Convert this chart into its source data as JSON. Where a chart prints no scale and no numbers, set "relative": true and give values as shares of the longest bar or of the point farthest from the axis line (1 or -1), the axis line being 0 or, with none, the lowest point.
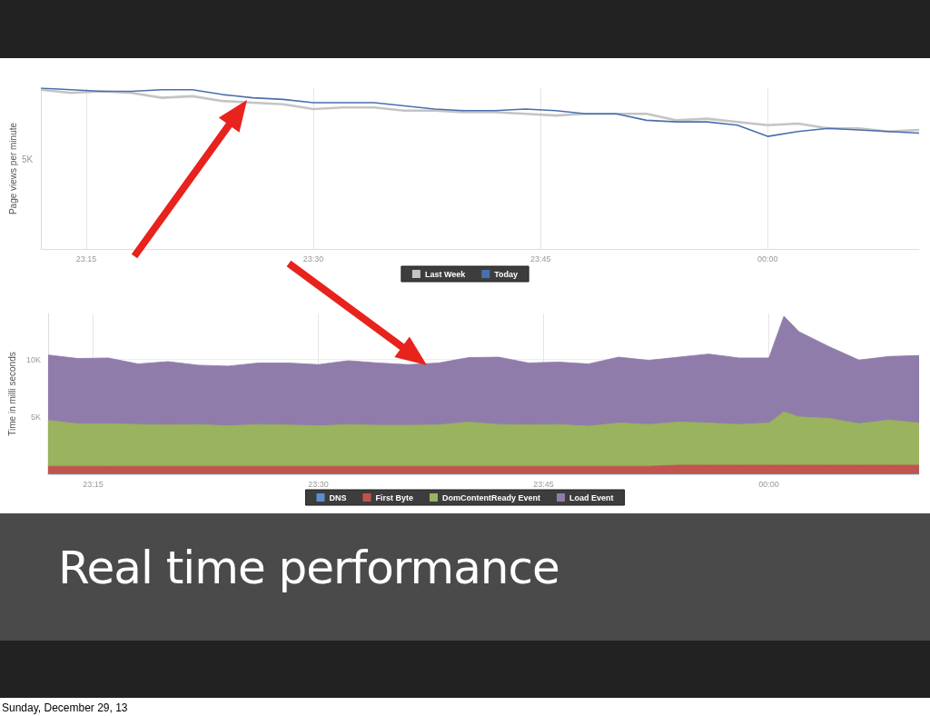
{
  "chart_data": [
    {
      "type": "line",
      "ylabel": "Page views per minute",
      "relative": true,
      "annotations": [
        "5K"
      ],
      "legend": "bottom",
      "grid": "x",
      "marker": "none",
      "xlim": [
        23.2,
        24.1667
      ],
      "xticks": [
        {
          "value": 23.25,
          "label": "23:15"
        },
        {
          "value": 23.5,
          "label": "23:30"
        },
        {
          "value": 23.75,
          "label": "23:45"
        },
        {
          "value": 24,
          "label": "00:00"
        }
      ],
      "x": [
        23.2,
        23.2333,
        23.2667,
        23.3,
        23.3333,
        23.3667,
        23.4,
        23.4333,
        23.4667,
        23.5,
        23.5333,
        23.5667,
        23.6,
        23.6333,
        23.6667,
        23.7,
        23.7333,
        23.7667,
        23.8,
        23.8333,
        23.8667,
        23.9,
        23.9333,
        23.9667,
        24.0,
        24.0333,
        24.0667,
        24.1,
        24.1333,
        24.1667
      ],
      "series": [
        {
          "name": "Last Week",
          "color": "#c4c4c4",
          "values": [
            0.99,
            0.97,
            0.98,
            0.97,
            0.94,
            0.95,
            0.92,
            0.91,
            0.9,
            0.87,
            0.88,
            0.88,
            0.86,
            0.86,
            0.85,
            0.85,
            0.84,
            0.83,
            0.84,
            0.84,
            0.84,
            0.8,
            0.81,
            0.79,
            0.77,
            0.78,
            0.75,
            0.75,
            0.73,
            0.74
          ]
        },
        {
          "name": "Today",
          "color": "#4a6fae",
          "values": [
            1.0,
            0.99,
            0.98,
            0.98,
            0.99,
            0.99,
            0.96,
            0.94,
            0.93,
            0.91,
            0.91,
            0.91,
            0.89,
            0.87,
            0.86,
            0.86,
            0.87,
            0.86,
            0.84,
            0.84,
            0.8,
            0.79,
            0.79,
            0.77,
            0.7,
            0.73,
            0.75,
            0.74,
            0.73,
            0.72
          ]
        }
      ]
    },
    {
      "type": "area",
      "stacked": true,
      "title": "Real time performance",
      "annotations": [
        "Sunday, December 29, 13"
      ],
      "ylabel": "Time in milli seconds",
      "legend": "bottom",
      "grid": true,
      "marker": "none",
      "xlim": [
        23.2,
        24.1667
      ],
      "xticks": [
        {
          "value": 23.25,
          "label": "23:15"
        },
        {
          "value": 23.5,
          "label": "23:30"
        },
        {
          "value": 23.75,
          "label": "23:45"
        },
        {
          "value": 24,
          "label": "00:00"
        }
      ],
      "ylim": [
        0,
        14000
      ],
      "yticks": [
        {
          "value": 5000,
          "label": "5K"
        },
        {
          "value": 10000,
          "label": "10K"
        }
      ],
      "x": [
        23.2,
        23.2333,
        23.2667,
        23.3,
        23.3333,
        23.3667,
        23.4,
        23.4333,
        23.4667,
        23.5,
        23.5333,
        23.5667,
        23.6,
        23.6333,
        23.6667,
        23.7,
        23.7333,
        23.7667,
        23.8,
        23.8333,
        23.8667,
        23.9,
        23.9333,
        23.9667,
        24.0,
        24.0167,
        24.0333,
        24.0667,
        24.1,
        24.1333,
        24.1667
      ],
      "series": [
        {
          "name": "DNS",
          "color": "#5b8fd0",
          "values": [
            30,
            30,
            30,
            30,
            30,
            30,
            30,
            30,
            30,
            30,
            30,
            30,
            30,
            30,
            30,
            30,
            30,
            30,
            30,
            30,
            30,
            30,
            30,
            30,
            30,
            30,
            30,
            30,
            30,
            30,
            30
          ]
        },
        {
          "name": "First Byte",
          "color": "#c0544f",
          "values": [
            670,
            670,
            670,
            670,
            670,
            670,
            670,
            670,
            670,
            670,
            670,
            670,
            670,
            670,
            670,
            670,
            670,
            670,
            670,
            670,
            670,
            770,
            770,
            770,
            770,
            770,
            770,
            770,
            770,
            770,
            770
          ]
        },
        {
          "name": "DomContentReady Event",
          "color": "#9ab35e",
          "values": [
            3990,
            3700,
            3700,
            3640,
            3600,
            3640,
            3520,
            3640,
            3600,
            3520,
            3640,
            3570,
            3570,
            3600,
            3850,
            3640,
            3600,
            3640,
            3490,
            3770,
            3640,
            3750,
            3670,
            3540,
            3670,
            4640,
            4200,
            4070,
            3600,
            3930,
            3670
          ]
        },
        {
          "name": "Load Event",
          "color": "#8f7cab",
          "values": [
            5700,
            5680,
            5730,
            5270,
            5510,
            5160,
            5200,
            5350,
            5390,
            5330,
            5550,
            5420,
            5280,
            5390,
            5610,
            5860,
            5390,
            5430,
            5420,
            5730,
            5580,
            5650,
            6000,
            5790,
            5660,
            8330,
            7420,
            6250,
            5550,
            5530,
            5870
          ]
        }
      ]
    }
  ]
}
